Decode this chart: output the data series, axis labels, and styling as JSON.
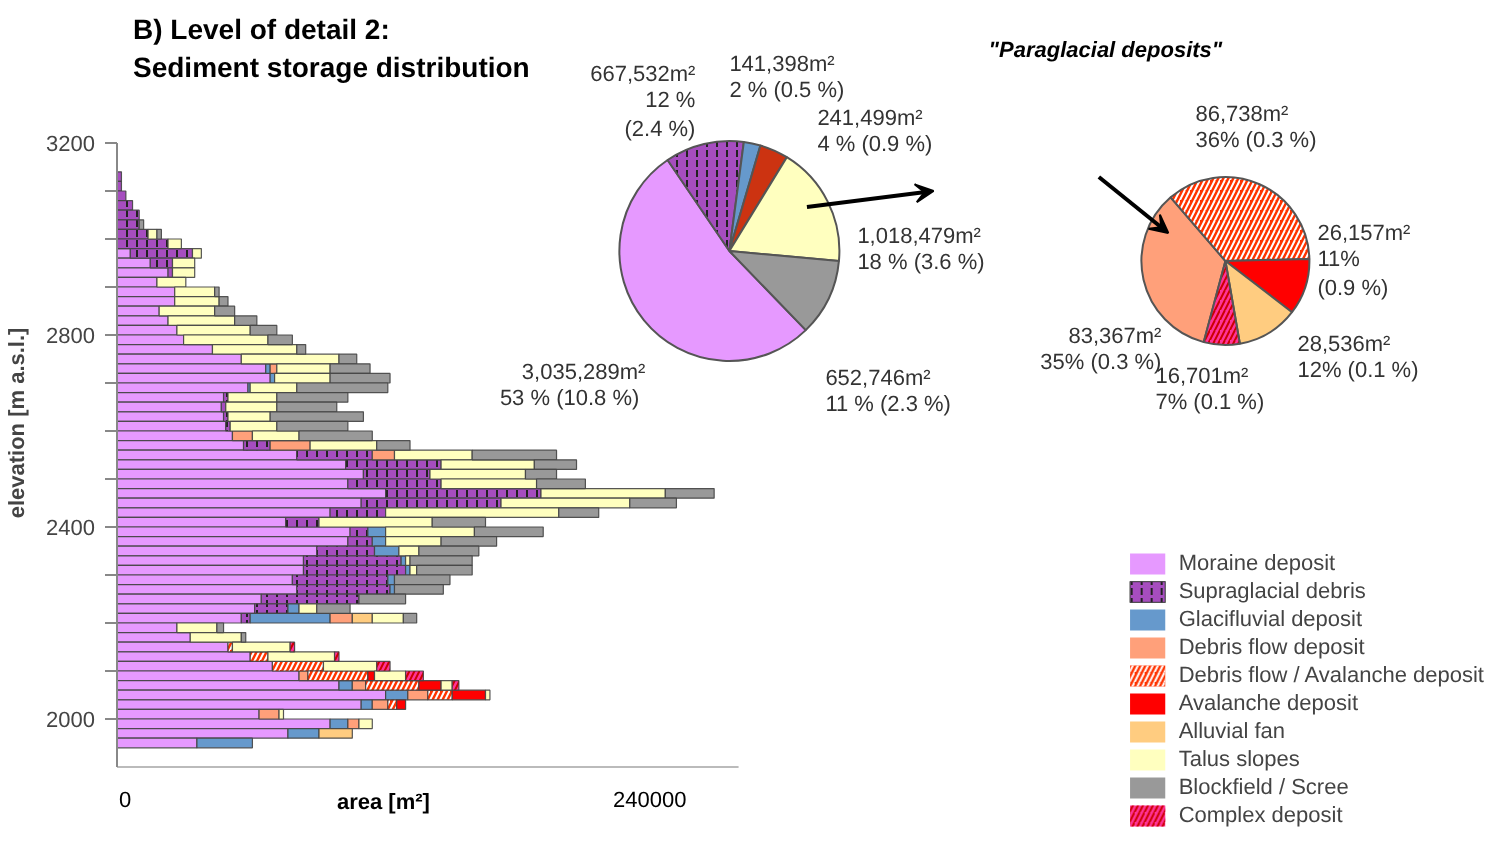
{
  "chart_data": [
    {
      "type": "bar",
      "orientation": "horizontal",
      "stacked": true,
      "title": "B) Level of detail 2:\nSediment storage distribution",
      "xlabel": "area [m²]",
      "ylabel": "elevation [m a.s.l.]",
      "legend": "bottom right",
      "grid": false,
      "x": [
        3130,
        3110,
        3090,
        3070,
        3050,
        3030,
        3010,
        2990,
        2970,
        2950,
        2930,
        2910,
        2890,
        2870,
        2850,
        2830,
        2810,
        2790,
        2770,
        2750,
        2730,
        2710,
        2690,
        2670,
        2650,
        2630,
        2610,
        2590,
        2570,
        2550,
        2530,
        2510,
        2490,
        2470,
        2450,
        2430,
        2410,
        2390,
        2370,
        2350,
        2330,
        2310,
        2290,
        2270,
        2250,
        2230,
        2210,
        2190,
        2170,
        2150,
        2130,
        2110,
        2090,
        2070,
        2050,
        2030,
        2010,
        1990,
        1970,
        1950
      ],
      "xlim": [
        0,
        280000
      ],
      "xticks": [
        0,
        240000
      ],
      "ylim": [
        1900,
        3200
      ],
      "yticks": [
        2000,
        {
          "value": 2100,
          "label": null
        },
        {
          "value": 2200,
          "label": null
        },
        {
          "value": 2300,
          "label": null
        },
        2400,
        {
          "value": 2500,
          "label": null
        },
        {
          "value": 2600,
          "label": null
        },
        {
          "value": 2700,
          "label": null
        },
        2800,
        {
          "value": 2900,
          "label": null
        },
        {
          "value": 3000,
          "label": null
        },
        {
          "value": 3100,
          "label": null
        },
        3200
      ],
      "series": [
        {
          "name": "Moraine deposit",
          "color": "#e699ff",
          "values": [
            0,
            0,
            0,
            0,
            0,
            0,
            0,
            0,
            6000,
            15000,
            23000,
            18000,
            26000,
            26000,
            19000,
            23000,
            27000,
            30000,
            43000,
            56000,
            67000,
            69000,
            59000,
            48000,
            47000,
            48000,
            49000,
            52000,
            57000,
            81000,
            103000,
            111000,
            104000,
            121000,
            110000,
            96000,
            76000,
            105000,
            104000,
            90000,
            84000,
            84000,
            79000,
            81000,
            65000,
            62000,
            56000,
            27000,
            33000,
            50000,
            60000,
            70000,
            82000,
            100000,
            121000,
            110000,
            64000,
            96000,
            77000,
            36000
          ]
        },
        {
          "name": "Supraglacial debris",
          "color": "#a64dbf",
          "values": [
            2000,
            2000,
            4000,
            7000,
            10000,
            10000,
            14000,
            23000,
            28000,
            10000,
            2000,
            0,
            0,
            0,
            0,
            0,
            0,
            0,
            0,
            0,
            0,
            0,
            0,
            2000,
            2000,
            2000,
            2000,
            0,
            12000,
            34000,
            43000,
            30000,
            42000,
            70000,
            63000,
            25000,
            15000,
            8000,
            11000,
            26000,
            44000,
            46000,
            43000,
            42000,
            44000,
            15000,
            4000,
            0,
            0,
            0,
            0,
            0,
            0,
            0,
            0,
            0,
            0,
            0,
            0,
            0
          ]
        },
        {
          "name": "Glacifluvial deposit",
          "color": "#6699cc",
          "values": [
            0,
            0,
            0,
            0,
            0,
            0,
            0,
            0,
            0,
            0,
            0,
            0,
            0,
            0,
            0,
            0,
            0,
            0,
            0,
            0,
            2000,
            2000,
            1000,
            0,
            0,
            0,
            0,
            0,
            0,
            0,
            0,
            0,
            0,
            0,
            0,
            0,
            0,
            8000,
            6000,
            11000,
            2000,
            2000,
            3000,
            2000,
            0,
            5000,
            36000,
            0,
            0,
            0,
            0,
            0,
            0,
            6000,
            10000,
            5000,
            0,
            8000,
            14000,
            25000
          ]
        },
        {
          "name": "Debris flow deposit",
          "color": "#ffa07a",
          "values": [
            0,
            0,
            0,
            0,
            0,
            0,
            0,
            0,
            0,
            0,
            0,
            0,
            0,
            0,
            0,
            0,
            0,
            0,
            0,
            0,
            3000,
            0,
            0,
            0,
            0,
            0,
            0,
            9000,
            18000,
            10000,
            0,
            0,
            0,
            0,
            0,
            0,
            0,
            0,
            0,
            0,
            0,
            0,
            0,
            0,
            0,
            0,
            10000,
            0,
            0,
            0,
            0,
            0,
            4000,
            6000,
            9000,
            7000,
            9000,
            5000,
            0,
            0
          ]
        },
        {
          "name": "Debris flow / Avalanche deposit",
          "color": "#ff3300",
          "values": [
            0,
            0,
            0,
            0,
            0,
            0,
            0,
            0,
            0,
            0,
            0,
            0,
            0,
            0,
            0,
            0,
            0,
            0,
            0,
            0,
            0,
            0,
            0,
            0,
            0,
            0,
            0,
            0,
            0,
            0,
            0,
            0,
            0,
            0,
            0,
            0,
            0,
            0,
            0,
            0,
            0,
            0,
            0,
            0,
            0,
            0,
            0,
            0,
            0,
            2000,
            8000,
            23000,
            27000,
            24000,
            11000,
            4000,
            0,
            0,
            0,
            0
          ]
        },
        {
          "name": "Avalanche deposit",
          "color": "#ff0000",
          "values": [
            0,
            0,
            0,
            0,
            0,
            0,
            0,
            0,
            0,
            0,
            0,
            0,
            0,
            0,
            0,
            0,
            0,
            0,
            0,
            0,
            0,
            0,
            0,
            0,
            0,
            0,
            0,
            0,
            0,
            0,
            0,
            0,
            0,
            0,
            0,
            0,
            0,
            0,
            0,
            0,
            0,
            0,
            0,
            0,
            0,
            0,
            0,
            0,
            0,
            0,
            0,
            0,
            3000,
            10000,
            15000,
            4000,
            0,
            0,
            0,
            0
          ]
        },
        {
          "name": "Alluvial fan",
          "color": "#ffcc80",
          "values": [
            0,
            0,
            0,
            0,
            0,
            0,
            0,
            0,
            0,
            0,
            0,
            0,
            0,
            0,
            0,
            0,
            0,
            0,
            0,
            0,
            0,
            0,
            0,
            0,
            0,
            0,
            0,
            0,
            0,
            0,
            0,
            0,
            0,
            0,
            0,
            0,
            0,
            0,
            0,
            0,
            0,
            0,
            0,
            0,
            0,
            0,
            9000,
            0,
            0,
            0,
            0,
            0,
            0,
            0,
            0,
            0,
            0,
            0,
            15000,
            0
          ]
        },
        {
          "name": "Talus slopes",
          "color": "#ffffbf",
          "values": [
            0,
            0,
            0,
            0,
            0,
            0,
            4000,
            6000,
            4000,
            10000,
            10000,
            13000,
            18000,
            20000,
            25000,
            30000,
            33000,
            38000,
            38000,
            44000,
            24000,
            25000,
            21000,
            22000,
            23000,
            19000,
            21000,
            21000,
            30000,
            35000,
            42000,
            43000,
            43000,
            56000,
            58000,
            78000,
            51000,
            40000,
            25000,
            9000,
            2000,
            3000,
            0,
            0,
            0,
            8000,
            14000,
            18000,
            23000,
            26000,
            30000,
            24000,
            14000,
            5000,
            2000,
            0,
            2000,
            6000,
            0,
            0
          ]
        },
        {
          "name": "Blockfield / Scree",
          "color": "#999999",
          "values": [
            0,
            0,
            0,
            0,
            0,
            2000,
            2000,
            0,
            0,
            0,
            0,
            0,
            2000,
            4000,
            9000,
            10000,
            12000,
            11000,
            4000,
            8000,
            18000,
            27000,
            41000,
            32000,
            27000,
            42000,
            32000,
            33000,
            15000,
            38000,
            19000,
            14000,
            22000,
            22000,
            21000,
            18000,
            24000,
            31000,
            25000,
            27000,
            28000,
            25000,
            25000,
            22000,
            21000,
            15000,
            6000,
            3000,
            2000,
            0,
            0,
            0,
            0,
            0,
            0,
            0,
            0,
            0,
            0,
            0
          ]
        },
        {
          "name": "Complex deposit",
          "color": "#ff3399",
          "values": [
            0,
            0,
            0,
            0,
            0,
            0,
            0,
            0,
            0,
            0,
            0,
            0,
            0,
            0,
            0,
            0,
            0,
            0,
            0,
            0,
            0,
            0,
            0,
            0,
            0,
            0,
            0,
            0,
            0,
            0,
            0,
            0,
            0,
            0,
            0,
            0,
            0,
            0,
            0,
            0,
            0,
            0,
            0,
            0,
            0,
            0,
            0,
            0,
            0,
            2000,
            2000,
            6000,
            8000,
            3000,
            0,
            0,
            0,
            0,
            0,
            0
          ]
        }
      ]
    },
    {
      "type": "pie",
      "categories": [
        null,
        null,
        null,
        null,
        null,
        null
      ],
      "values": [
        3035289,
        667532,
        141398,
        241499,
        1018479,
        652746
      ],
      "colors": [
        "#e699ff",
        "#a64dbf",
        "#6699cc",
        "#cc3311",
        "#ffffbf",
        "#999999"
      ],
      "value_labels": [
        "3,035,289m²",
        "667,532m²",
        "141,398m²",
        "241,499m²",
        "1,018,479m²",
        "652,746m²"
      ],
      "annotations": [
        "53 %  (10.8 %)",
        "12 %\n(2.4 %)",
        "2 %    (0.5 %)",
        "4 %  (0.9 %)",
        "18 %  (3.6 %)",
        "11 %  (2.3 %)"
      ]
    },
    {
      "type": "pie",
      "title": "\"Paraglacial deposits\"",
      "categories": [
        null,
        null,
        null,
        null,
        null
      ],
      "values": [
        83367,
        86738,
        26157,
        28536,
        16701
      ],
      "colors": [
        "#ffa07a",
        "#ff3300",
        "#ff0000",
        "#ffcc80",
        "#ff3399"
      ],
      "value_labels": [
        "83,367m²",
        "86,738m²",
        "26,157m²",
        "28,536m²",
        "16,701m²"
      ],
      "annotations": [
        "35% (0.3 %)",
        "36% (0.3 %)",
        "11%\n(0.9 %)",
        "12% (0.1 %)",
        "7% (0.1 %)"
      ]
    }
  ]
}
